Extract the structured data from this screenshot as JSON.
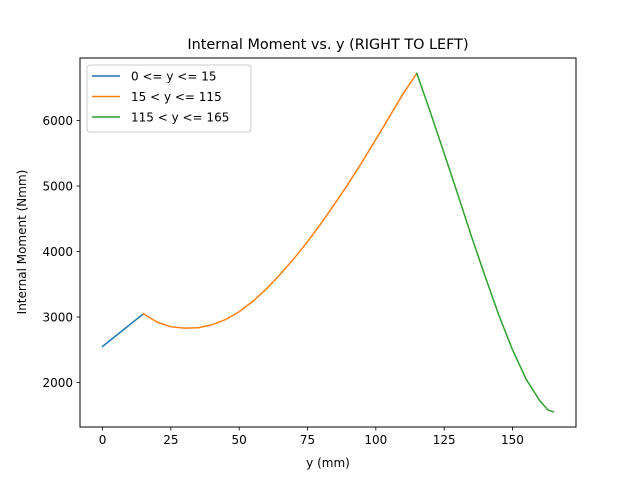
{
  "chart_data": {
    "type": "line",
    "title": "Internal Moment vs. y (RIGHT TO LEFT)",
    "xlabel": "y (mm)",
    "ylabel": "Internal Moment (Nmm)",
    "xlim": [
      -8.25,
      173.25
    ],
    "ylim": [
      1320,
      6955
    ],
    "xticks": [
      0,
      25,
      50,
      75,
      100,
      125,
      150
    ],
    "yticks": [
      2000,
      3000,
      4000,
      5000,
      6000
    ],
    "grid": false,
    "legend_position": "upper-left",
    "series": [
      {
        "name": "0 <= y <= 15",
        "color": "#1f77b4",
        "x": [
          0,
          15
        ],
        "y": [
          2550,
          3050
        ]
      },
      {
        "name": "15 < y <= 115",
        "color": "#ff7f0e",
        "x": [
          15,
          20,
          25,
          30,
          35,
          40,
          45,
          50,
          55,
          60,
          65,
          70,
          75,
          80,
          85,
          90,
          95,
          100,
          105,
          110,
          115
        ],
        "y": [
          3050,
          2920,
          2850,
          2830,
          2835,
          2880,
          2960,
          3080,
          3240,
          3430,
          3650,
          3890,
          4150,
          4430,
          4730,
          5040,
          5370,
          5710,
          6060,
          6410,
          6720
        ]
      },
      {
        "name": "115 < y <= 165",
        "color": "#2ca02c",
        "x": [
          115,
          120,
          125,
          130,
          135,
          140,
          145,
          150,
          155,
          160,
          163,
          165
        ],
        "y": [
          6720,
          6120,
          5500,
          4870,
          4230,
          3620,
          3030,
          2500,
          2050,
          1720,
          1580,
          1550
        ]
      }
    ]
  }
}
